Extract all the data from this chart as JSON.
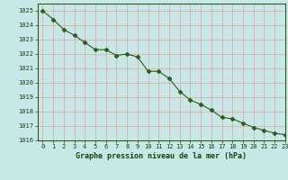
{
  "x": [
    0,
    1,
    2,
    3,
    4,
    5,
    6,
    7,
    8,
    9,
    10,
    11,
    12,
    13,
    14,
    15,
    16,
    17,
    18,
    19,
    20,
    21,
    22,
    23
  ],
  "y": [
    1025.0,
    1024.4,
    1023.7,
    1023.3,
    1022.8,
    1022.3,
    1022.3,
    1021.9,
    1022.0,
    1021.8,
    1020.8,
    1020.8,
    1020.3,
    1019.4,
    1018.8,
    1018.5,
    1018.1,
    1017.6,
    1017.5,
    1017.2,
    1016.9,
    1016.7,
    1016.5,
    1016.4
  ],
  "xlim": [
    -0.5,
    23
  ],
  "ylim": [
    1016,
    1025.5
  ],
  "yticks": [
    1016,
    1017,
    1018,
    1019,
    1020,
    1021,
    1022,
    1023,
    1024,
    1025
  ],
  "xticks": [
    0,
    1,
    2,
    3,
    4,
    5,
    6,
    7,
    8,
    9,
    10,
    11,
    12,
    13,
    14,
    15,
    16,
    17,
    18,
    19,
    20,
    21,
    22,
    23
  ],
  "xlabel": "Graphe pression niveau de la mer (hPa)",
  "line_color": "#2d5a1b",
  "marker": "D",
  "marker_size": 2.5,
  "bg_color": "#c8e8e8",
  "grid_major_color": "#e8a0a0",
  "grid_minor_color": "#e8c0c0",
  "text_color": "#1a4010",
  "spine_color": "#2d5a1b",
  "xlabel_fontsize": 6.0,
  "tick_fontsize": 5.0
}
